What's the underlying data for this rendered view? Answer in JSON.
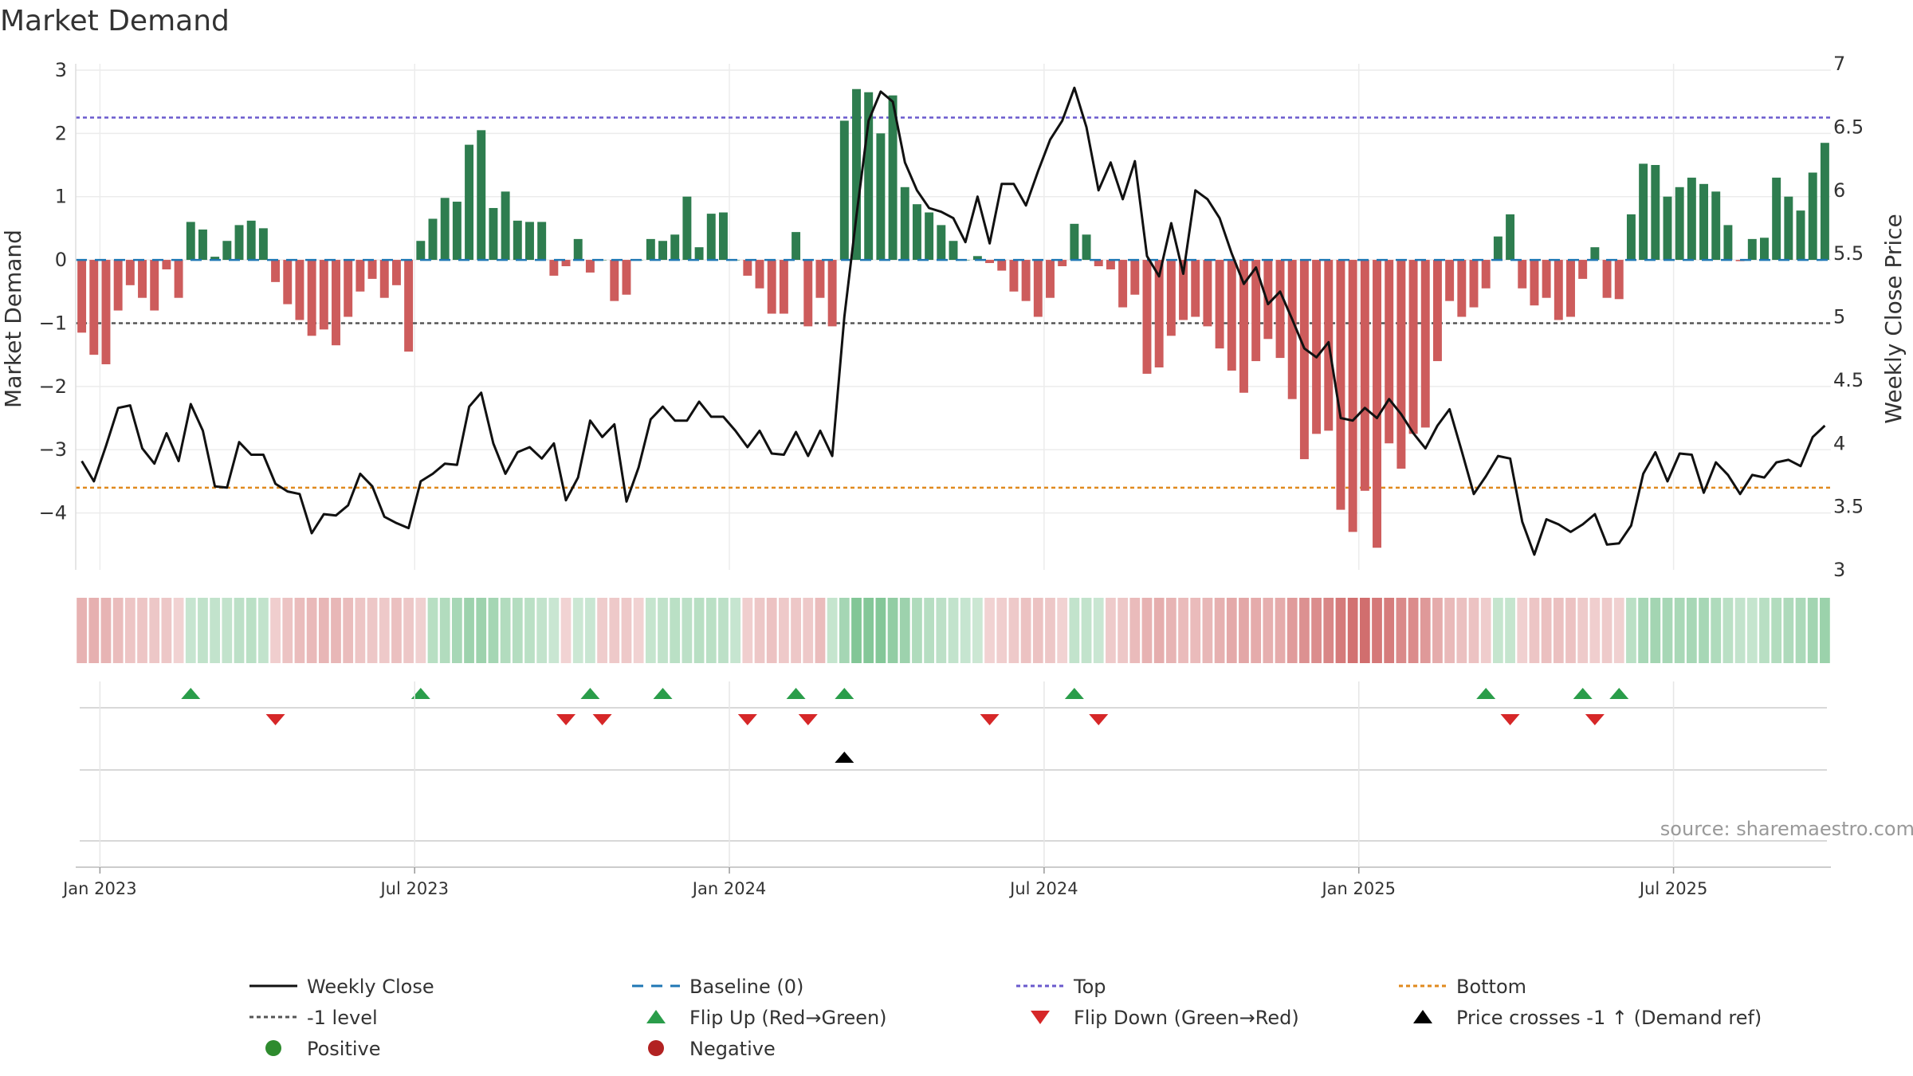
{
  "chart_data": {
    "type": "bar+line",
    "title": "Market Demand",
    "ylabel_left": "Market Demand",
    "ylabel_right": "Weekly Close Price",
    "ylim_left": [
      -4.9,
      3.1
    ],
    "ylim_right": [
      3.0,
      7.0
    ],
    "left_ticks": [
      {
        "v": 3,
        "label": "3"
      },
      {
        "v": 2,
        "label": "2"
      },
      {
        "v": 1,
        "label": "1"
      },
      {
        "v": 0,
        "label": "0"
      },
      {
        "v": -1,
        "label": "−1"
      },
      {
        "v": -2,
        "label": "−2"
      },
      {
        "v": -3,
        "label": "−3"
      },
      {
        "v": -4,
        "label": "−4"
      }
    ],
    "right_ticks": [
      {
        "v": 7,
        "label": "7"
      },
      {
        "v": 6.5,
        "label": "6.5"
      },
      {
        "v": 6,
        "label": "6"
      },
      {
        "v": 5.5,
        "label": "5.5"
      },
      {
        "v": 5,
        "label": "5"
      },
      {
        "v": 4.5,
        "label": "4.5"
      },
      {
        "v": 4,
        "label": "4"
      },
      {
        "v": 3.5,
        "label": "3.5"
      },
      {
        "v": 3,
        "label": "3"
      }
    ],
    "x_ticks": [
      {
        "week": 1.5,
        "label": "Jan 2023"
      },
      {
        "week": 27.5,
        "label": "Jul 2023"
      },
      {
        "week": 53.5,
        "label": "Jan 2024"
      },
      {
        "week": 79.5,
        "label": "Jul 2024"
      },
      {
        "week": 105.5,
        "label": "Jan 2025"
      },
      {
        "week": 131.5,
        "label": "Jul 2025"
      }
    ],
    "reference_lines": {
      "top": 2.25,
      "bottom": -3.6,
      "minus_one": -1,
      "baseline": 0
    },
    "demand": [
      -1.15,
      -1.5,
      -1.65,
      -0.8,
      -0.4,
      -0.6,
      -0.8,
      -0.15,
      -0.6,
      0.6,
      0.48,
      0.05,
      0.3,
      0.55,
      0.62,
      0.5,
      -0.35,
      -0.7,
      -0.95,
      -1.2,
      -1.1,
      -1.35,
      -0.9,
      -0.5,
      -0.3,
      -0.6,
      -0.4,
      -1.45,
      0.3,
      0.65,
      0.98,
      0.92,
      1.82,
      2.05,
      0.82,
      1.08,
      0.62,
      0.6,
      0.6,
      -0.25,
      -0.1,
      0.33,
      -0.2,
      0,
      -0.65,
      -0.55,
      0,
      0.33,
      0.3,
      0.4,
      1.0,
      0.2,
      0.73,
      0.75,
      0,
      -0.25,
      -0.45,
      -0.85,
      -0.85,
      0.44,
      -1.05,
      -0.6,
      -1.05,
      2.2,
      2.7,
      2.65,
      2.0,
      2.6,
      1.15,
      0.88,
      0.75,
      0.55,
      0.3,
      0,
      0.06,
      -0.05,
      -0.17,
      -0.5,
      -0.65,
      -0.9,
      -0.6,
      -0.1,
      0.57,
      0.4,
      -0.1,
      -0.15,
      -0.75,
      -0.55,
      -1.8,
      -1.7,
      -1.2,
      -0.95,
      -0.9,
      -1.05,
      -1.4,
      -1.75,
      -2.1,
      -1.6,
      -1.25,
      -1.55,
      -2.2,
      -3.15,
      -2.75,
      -2.7,
      -3.95,
      -4.3,
      -3.65,
      -4.55,
      -2.9,
      -3.3,
      -2.75,
      -2.65,
      -1.6,
      -0.65,
      -0.9,
      -0.75,
      -0.45,
      0.37,
      0.72,
      -0.45,
      -0.72,
      -0.6,
      -0.95,
      -0.9,
      -0.3,
      0.2,
      -0.6,
      -0.62,
      0.72,
      1.52,
      1.5,
      1.0,
      1.15,
      1.3,
      1.2,
      1.08,
      0.55,
      -0.02,
      0.33,
      0.35,
      1.3,
      1.0,
      0.78,
      1.38,
      1.85
    ],
    "price_weekly_close": [
      3.86,
      3.7,
      3.98,
      4.28,
      4.3,
      3.96,
      3.84,
      4.08,
      3.86,
      4.31,
      4.1,
      3.66,
      3.65,
      4.01,
      3.91,
      3.91,
      3.68,
      3.62,
      3.6,
      3.29,
      3.44,
      3.43,
      3.51,
      3.76,
      3.66,
      3.42,
      3.37,
      3.33,
      3.7,
      3.76,
      3.84,
      3.83,
      4.29,
      4.4,
      4.0,
      3.76,
      3.93,
      3.97,
      3.88,
      4.0,
      3.55,
      3.73,
      4.18,
      4.05,
      4.15,
      3.54,
      3.81,
      4.19,
      4.29,
      4.18,
      4.18,
      4.33,
      4.21,
      4.21,
      4.1,
      3.97,
      4.1,
      3.92,
      3.91,
      4.09,
      3.9,
      4.1,
      3.9,
      5.0,
      5.8,
      6.55,
      6.78,
      6.7,
      6.22,
      6.0,
      5.86,
      5.83,
      5.78,
      5.59,
      5.95,
      5.58,
      6.05,
      6.05,
      5.88,
      6.15,
      6.4,
      6.55,
      6.81,
      6.5,
      6.0,
      6.22,
      5.93,
      6.23,
      5.48,
      5.32,
      5.74,
      5.34,
      6.0,
      5.93,
      5.78,
      5.5,
      5.26,
      5.39,
      5.1,
      5.2,
      4.98,
      4.75,
      4.68,
      4.8,
      4.2,
      4.18,
      4.28,
      4.2,
      4.35,
      4.23,
      4.08,
      3.96,
      4.14,
      4.27,
      3.94,
      3.6,
      3.74,
      3.9,
      3.88,
      3.38,
      3.12,
      3.4,
      3.36,
      3.3,
      3.36,
      3.44,
      3.2,
      3.21,
      3.35,
      3.76,
      3.93,
      3.7,
      3.92,
      3.91,
      3.61,
      3.85,
      3.75,
      3.6,
      3.75,
      3.73,
      3.85,
      3.87,
      3.82,
      4.05,
      4.14
    ],
    "flip_up_weeks": [
      9,
      28,
      42,
      48,
      59,
      63,
      82,
      116,
      124,
      127
    ],
    "flip_down_weeks": [
      16,
      40,
      43,
      55,
      60,
      75,
      84,
      118,
      125
    ],
    "price_cross_weeks": [
      63
    ],
    "legend": [
      {
        "key": "weekly_close",
        "label": "Weekly Close"
      },
      {
        "key": "baseline",
        "label": "Baseline (0)"
      },
      {
        "key": "top",
        "label": "Top"
      },
      {
        "key": "bottom",
        "label": "Bottom"
      },
      {
        "key": "minus_one",
        "label": "-1 level"
      },
      {
        "key": "flip_up",
        "label": "Flip Up (Red→Green)"
      },
      {
        "key": "flip_down",
        "label": "Flip Down (Green→Red)"
      },
      {
        "key": "price_cross",
        "label": "Price crosses -1 ↑ (Demand ref)"
      },
      {
        "key": "positive",
        "label": "Positive"
      },
      {
        "key": "negative",
        "label": "Negative"
      }
    ]
  },
  "source_note": "source: sharemaestro.com",
  "colors": {
    "positive_bar": "#2e7d4f",
    "negative_bar": "#cd5c5c",
    "price_line": "#111111",
    "baseline": "#1f77b4",
    "top_line": "#6a5acd",
    "bottom_line": "#e08a1e",
    "minus_one_line": "#555555",
    "flip_up": "#2a9d4a",
    "flip_down": "#d62728",
    "price_cross": "#000000",
    "positive_dot": "#2e8b2e",
    "negative_dot": "#b22222"
  }
}
